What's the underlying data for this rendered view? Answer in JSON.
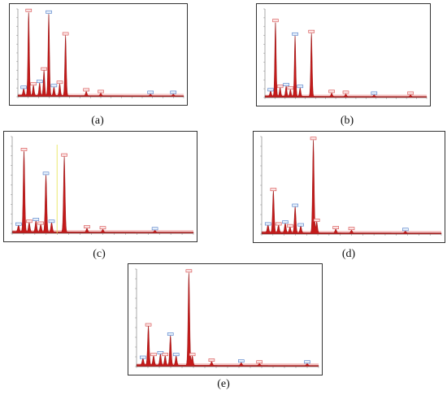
{
  "chart_data": [
    {
      "type": "area",
      "caption": "(a)",
      "title": "",
      "xlabel": "",
      "ylabel": "",
      "peaks": [
        {
          "x": 0.28,
          "y": 0.08,
          "color": "blue"
        },
        {
          "x": 0.52,
          "y": 1.0,
          "color": "red"
        },
        {
          "x": 0.75,
          "y": 0.12,
          "color": "red"
        },
        {
          "x": 1.05,
          "y": 0.15,
          "color": "blue"
        },
        {
          "x": 1.26,
          "y": 0.3,
          "color": "red"
        },
        {
          "x": 1.49,
          "y": 0.98,
          "color": "blue"
        },
        {
          "x": 1.74,
          "y": 0.1,
          "color": "blue"
        },
        {
          "x": 2.02,
          "y": 0.14,
          "color": "red"
        },
        {
          "x": 2.3,
          "y": 0.72,
          "color": "red"
        },
        {
          "x": 3.3,
          "y": 0.05,
          "color": "red"
        },
        {
          "x": 4.0,
          "y": 0.03,
          "color": "red"
        },
        {
          "x": 6.4,
          "y": 0.02,
          "color": "blue"
        },
        {
          "x": 7.5,
          "y": 0.02,
          "color": "blue"
        }
      ],
      "xlim": [
        0,
        8
      ],
      "ylim": [
        0,
        1.05
      ]
    },
    {
      "type": "area",
      "caption": "(b)",
      "title": "",
      "xlabel": "",
      "ylabel": "",
      "peaks": [
        {
          "x": 0.28,
          "y": 0.06,
          "color": "blue"
        },
        {
          "x": 0.52,
          "y": 0.88,
          "color": "red"
        },
        {
          "x": 0.75,
          "y": 0.1,
          "color": "red"
        },
        {
          "x": 1.05,
          "y": 0.12,
          "color": "blue"
        },
        {
          "x": 1.26,
          "y": 0.08,
          "color": "red"
        },
        {
          "x": 1.49,
          "y": 0.72,
          "color": "blue"
        },
        {
          "x": 1.74,
          "y": 0.1,
          "color": "blue"
        },
        {
          "x": 2.3,
          "y": 0.75,
          "color": "red"
        },
        {
          "x": 3.3,
          "y": 0.04,
          "color": "red"
        },
        {
          "x": 4.0,
          "y": 0.03,
          "color": "red"
        },
        {
          "x": 5.4,
          "y": 0.02,
          "color": "blue"
        },
        {
          "x": 7.2,
          "y": 0.02,
          "color": "red"
        }
      ],
      "xlim": [
        0,
        8
      ],
      "ylim": [
        0,
        1.05
      ]
    },
    {
      "type": "area",
      "caption": "(c)",
      "title": "",
      "xlabel": "",
      "ylabel": "",
      "peaks": [
        {
          "x": 0.28,
          "y": 0.07,
          "color": "blue"
        },
        {
          "x": 0.52,
          "y": 0.88,
          "color": "red"
        },
        {
          "x": 0.75,
          "y": 0.1,
          "color": "red"
        },
        {
          "x": 1.05,
          "y": 0.12,
          "color": "blue"
        },
        {
          "x": 1.26,
          "y": 0.08,
          "color": "red"
        },
        {
          "x": 1.49,
          "y": 0.62,
          "color": "blue"
        },
        {
          "x": 1.74,
          "y": 0.1,
          "color": "blue"
        },
        {
          "x": 2.3,
          "y": 0.82,
          "color": "red"
        },
        {
          "x": 3.3,
          "y": 0.04,
          "color": "red"
        },
        {
          "x": 4.0,
          "y": 0.03,
          "color": "red"
        },
        {
          "x": 6.3,
          "y": 0.02,
          "color": "blue"
        }
      ],
      "cursor_x": 1.98,
      "xlim": [
        0,
        8
      ],
      "ylim": [
        0,
        1.05
      ]
    },
    {
      "type": "area",
      "caption": "(d)",
      "title": "",
      "xlabel": "",
      "ylabel": "",
      "peaks": [
        {
          "x": 0.28,
          "y": 0.08,
          "color": "blue"
        },
        {
          "x": 0.52,
          "y": 0.45,
          "color": "red"
        },
        {
          "x": 0.75,
          "y": 0.08,
          "color": "red"
        },
        {
          "x": 1.05,
          "y": 0.1,
          "color": "blue"
        },
        {
          "x": 1.26,
          "y": 0.06,
          "color": "red"
        },
        {
          "x": 1.49,
          "y": 0.28,
          "color": "blue"
        },
        {
          "x": 1.74,
          "y": 0.07,
          "color": "blue"
        },
        {
          "x": 2.3,
          "y": 1.0,
          "color": "red"
        },
        {
          "x": 2.45,
          "y": 0.12,
          "color": "red"
        },
        {
          "x": 3.3,
          "y": 0.04,
          "color": "red"
        },
        {
          "x": 4.0,
          "y": 0.03,
          "color": "red"
        },
        {
          "x": 6.4,
          "y": 0.02,
          "color": "blue"
        }
      ],
      "xlim": [
        0,
        8
      ],
      "ylim": [
        0,
        1.05
      ]
    },
    {
      "type": "area",
      "caption": "(e)",
      "title": "",
      "xlabel": "",
      "ylabel": "",
      "peaks": [
        {
          "x": 0.28,
          "y": 0.07,
          "color": "blue"
        },
        {
          "x": 0.52,
          "y": 0.42,
          "color": "red"
        },
        {
          "x": 0.75,
          "y": 0.1,
          "color": "red"
        },
        {
          "x": 1.05,
          "y": 0.12,
          "color": "blue"
        },
        {
          "x": 1.26,
          "y": 0.1,
          "color": "red"
        },
        {
          "x": 1.49,
          "y": 0.32,
          "color": "blue"
        },
        {
          "x": 1.74,
          "y": 0.1,
          "color": "blue"
        },
        {
          "x": 2.3,
          "y": 1.0,
          "color": "red"
        },
        {
          "x": 2.45,
          "y": 0.1,
          "color": "red"
        },
        {
          "x": 3.3,
          "y": 0.04,
          "color": "red"
        },
        {
          "x": 4.6,
          "y": 0.03,
          "color": "blue"
        },
        {
          "x": 5.4,
          "y": 0.02,
          "color": "red"
        },
        {
          "x": 7.5,
          "y": 0.02,
          "color": "blue"
        }
      ],
      "xlim": [
        0,
        8
      ],
      "ylim": [
        0,
        1.05
      ]
    }
  ]
}
